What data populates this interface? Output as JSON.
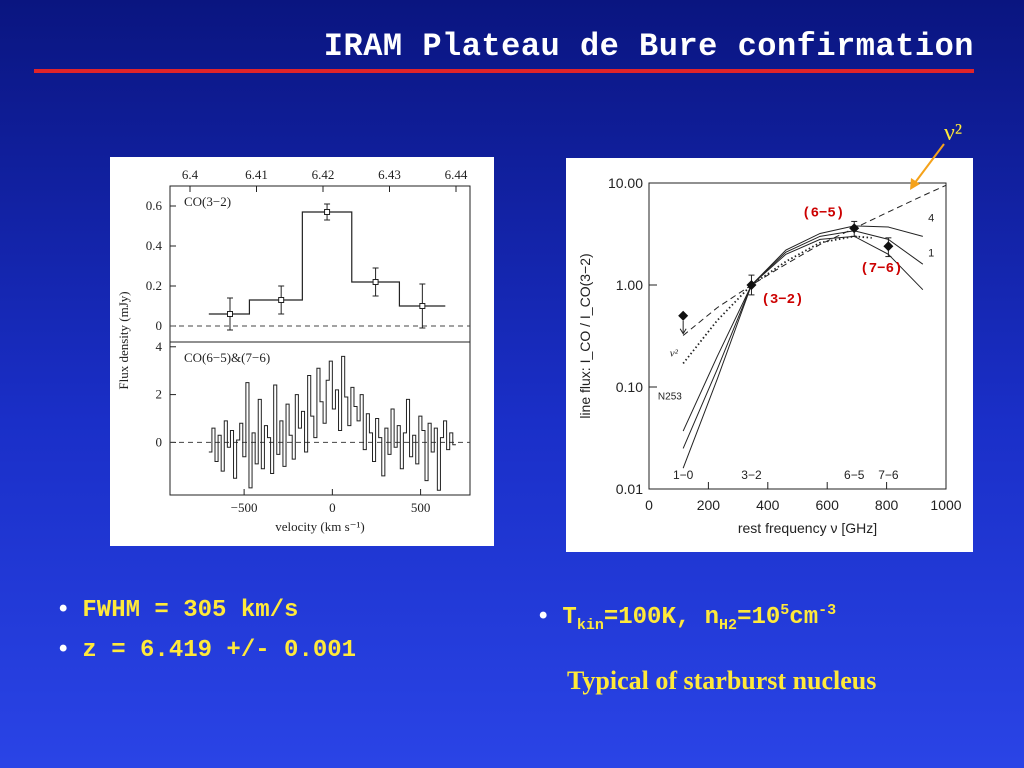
{
  "title": "IRAM Plateau de Bure confirmation",
  "annotation_nu2": "ν²",
  "bullets_left": [
    "FWHM = 305 km/s",
    "z = 6.419 +/- 0.001"
  ],
  "bullet_right": {
    "t": "T",
    "t_sub": "kin",
    "eq1": "=100K, n",
    "n_sub": "H2",
    "eq2": "=10",
    "exp": "5",
    "unit": "cm",
    "unit_exp": "-3"
  },
  "tagline": "Typical of starburst nucleus",
  "colors": {
    "accent_rule": "#e0242a",
    "bullet_text": "#ffe93a",
    "label_red": "#cc0000"
  },
  "chart_data": [
    {
      "type": "line",
      "subtype": "step-histogram",
      "top_axis": {
        "ticks": [
          "6.4",
          "6.41",
          "6.42",
          "6.43",
          "6.44"
        ]
      },
      "xlabel": "velocity (km s⁻¹)",
      "xticks": [
        "−500",
        "0",
        "500"
      ],
      "xlim": [
        -920,
        780
      ],
      "ylabel": "Flux density (mJy)",
      "panels": [
        {
          "label": "CO(3−2)",
          "ylim": [
            -0.08,
            0.7
          ],
          "yticks": [
            "0",
            "0.2",
            "0.4",
            "0.6"
          ],
          "steps": [
            [
              -700,
              0.06
            ],
            [
              -470,
              0.13
            ],
            [
              -170,
              0.57
            ],
            [
              110,
              0.22
            ],
            [
              380,
              0.1
            ],
            [
              640,
              0.1
            ]
          ],
          "points": [
            {
              "x": -580,
              "y": 0.06,
              "err": 0.08
            },
            {
              "x": -290,
              "y": 0.13,
              "err": 0.07
            },
            {
              "x": -30,
              "y": 0.57,
              "err": 0.04
            },
            {
              "x": 245,
              "y": 0.22,
              "err": 0.07
            },
            {
              "x": 510,
              "y": 0.1,
              "err": 0.11
            }
          ]
        },
        {
          "label": "CO(6−5)&(7−6)",
          "ylim": [
            -2.2,
            4.2
          ],
          "yticks": [
            "0",
            "2",
            "4"
          ],
          "noisy_spectrum": [
            -0.4,
            0.6,
            -0.8,
            0.3,
            -1.2,
            0.9,
            -0.2,
            0.5,
            -1.5,
            0.1,
            0.8,
            -0.6,
            2.5,
            -1.9,
            0.4,
            -0.9,
            1.8,
            -1.1,
            0.7,
            0.2,
            -1.3,
            2.4,
            -0.5,
            0.9,
            -1.0,
            1.6,
            0.3,
            -0.7,
            2.0,
            0.6,
            1.3,
            -0.4,
            2.8,
            1.1,
            0.2,
            3.1,
            1.7,
            0.8,
            2.6,
            3.4,
            1.4,
            2.2,
            0.5,
            3.6,
            1.9,
            0.7,
            2.3,
            1.5,
            0.9,
            2.0,
            -0.3,
            1.2,
            0.4,
            -0.8,
            1.0,
            0.2,
            -1.4,
            0.6,
            -0.5,
            1.4,
            -0.2,
            0.7,
            -1.1,
            0.4,
            1.8,
            -0.6,
            0.3,
            -0.9,
            1.1,
            0.5,
            -1.6,
            0.8,
            -0.4,
            0.6,
            -2.0,
            0.2,
            0.9,
            -0.3,
            0.4,
            -0.1
          ]
        }
      ]
    },
    {
      "type": "line",
      "scale_y": "log",
      "ylabel": "line flux:  I_CO / I_CO(3−2)",
      "xlabel": "rest frequency ν [GHz]",
      "xlim": [
        0,
        1000
      ],
      "ylim": [
        0.01,
        10
      ],
      "xticks": [
        "0",
        "200",
        "400",
        "600",
        "800",
        "1000"
      ],
      "yticks": [
        "0.01",
        "0.10",
        "1.00",
        "10.00"
      ],
      "transition_labels": [
        "1−0",
        "3−2",
        "6−5",
        "7−6"
      ],
      "model_labels": [
        "4",
        "1",
        "N253",
        "ν²"
      ],
      "series": [
        {
          "style": "solid",
          "points": [
            [
              115,
              0.037
            ],
            [
              230,
              0.2
            ],
            [
              345,
              1.0
            ],
            [
              461,
              2.0
            ],
            [
              576,
              2.8
            ],
            [
              691,
              3.0
            ],
            [
              806,
              2.0
            ],
            [
              922,
              0.9
            ]
          ]
        },
        {
          "style": "solid",
          "points": [
            [
              115,
              0.025
            ],
            [
              230,
              0.15
            ],
            [
              345,
              1.0
            ],
            [
              461,
              2.1
            ],
            [
              576,
              3.0
            ],
            [
              691,
              3.4
            ],
            [
              806,
              2.8
            ],
            [
              922,
              1.6
            ]
          ]
        },
        {
          "style": "solid",
          "points": [
            [
              115,
              0.016
            ],
            [
              230,
              0.12
            ],
            [
              345,
              1.0
            ],
            [
              461,
              2.2
            ],
            [
              576,
              3.2
            ],
            [
              691,
              3.8
            ],
            [
              806,
              3.7
            ],
            [
              922,
              3.0
            ]
          ]
        },
        {
          "style": "dotted",
          "points": [
            [
              115,
              0.17
            ],
            [
              230,
              0.45
            ],
            [
              345,
              1.0
            ],
            [
              461,
              1.7
            ],
            [
              576,
              2.6
            ],
            [
              691,
              3.0
            ],
            [
              750,
              2.9
            ]
          ]
        },
        {
          "style": "dashed",
          "points": [
            [
              115,
              0.32
            ],
            [
              230,
              0.6
            ],
            [
              345,
              1.0
            ],
            [
              461,
              1.6
            ],
            [
              576,
              2.5
            ],
            [
              691,
              3.6
            ],
            [
              806,
              5.2
            ],
            [
              922,
              7.5
            ],
            [
              1000,
              9.5
            ]
          ]
        }
      ],
      "data_points": [
        {
          "label": "(3−2)",
          "x": 345,
          "y": 1.0,
          "err": [
            0.8,
            1.25
          ]
        },
        {
          "label": "(6−5)",
          "x": 691,
          "y": 3.6,
          "err": [
            3.0,
            4.2
          ]
        },
        {
          "label": "(7−6)",
          "x": 806,
          "y": 2.4,
          "err": [
            1.9,
            2.9
          ]
        }
      ],
      "upper_limit": {
        "x": 115,
        "y": 0.5
      }
    }
  ]
}
